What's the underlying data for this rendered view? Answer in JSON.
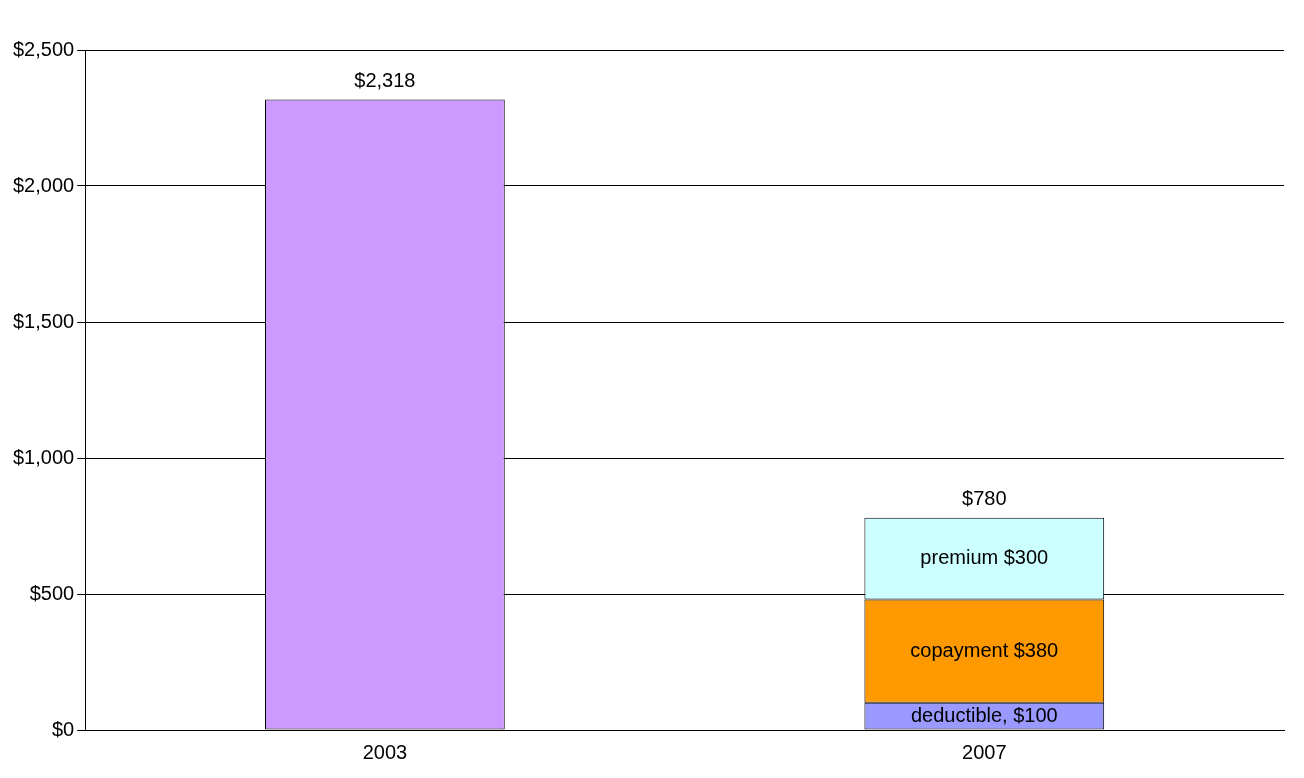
{
  "chart_data": {
    "type": "bar",
    "stacked": true,
    "categories": [
      "2003",
      "2007"
    ],
    "series": [
      {
        "color": "#cc99ff",
        "values": [
          2318,
          null
        ]
      },
      {
        "color": "#9999ff",
        "values": [
          null,
          100
        ],
        "value_labels": [
          null,
          "deductible, $100"
        ]
      },
      {
        "color": "#ff9900",
        "values": [
          null,
          380
        ],
        "value_labels": [
          null,
          "copayment $380"
        ]
      },
      {
        "color": "#ccffff",
        "values": [
          null,
          300
        ],
        "value_labels": [
          null,
          "premium $300"
        ]
      }
    ],
    "totals": [
      "$2,318",
      "$780"
    ],
    "ylim": [
      0,
      2500
    ],
    "yticks": [
      {
        "value": 0,
        "label": "$0"
      },
      {
        "value": 500,
        "label": "$500"
      },
      {
        "value": 1000,
        "label": "$1,000"
      },
      {
        "value": 1500,
        "label": "$1,500"
      },
      {
        "value": 2000,
        "label": "$2,000"
      },
      {
        "value": 2500,
        "label": "$2,500"
      }
    ],
    "grid": "y",
    "legend": false
  }
}
